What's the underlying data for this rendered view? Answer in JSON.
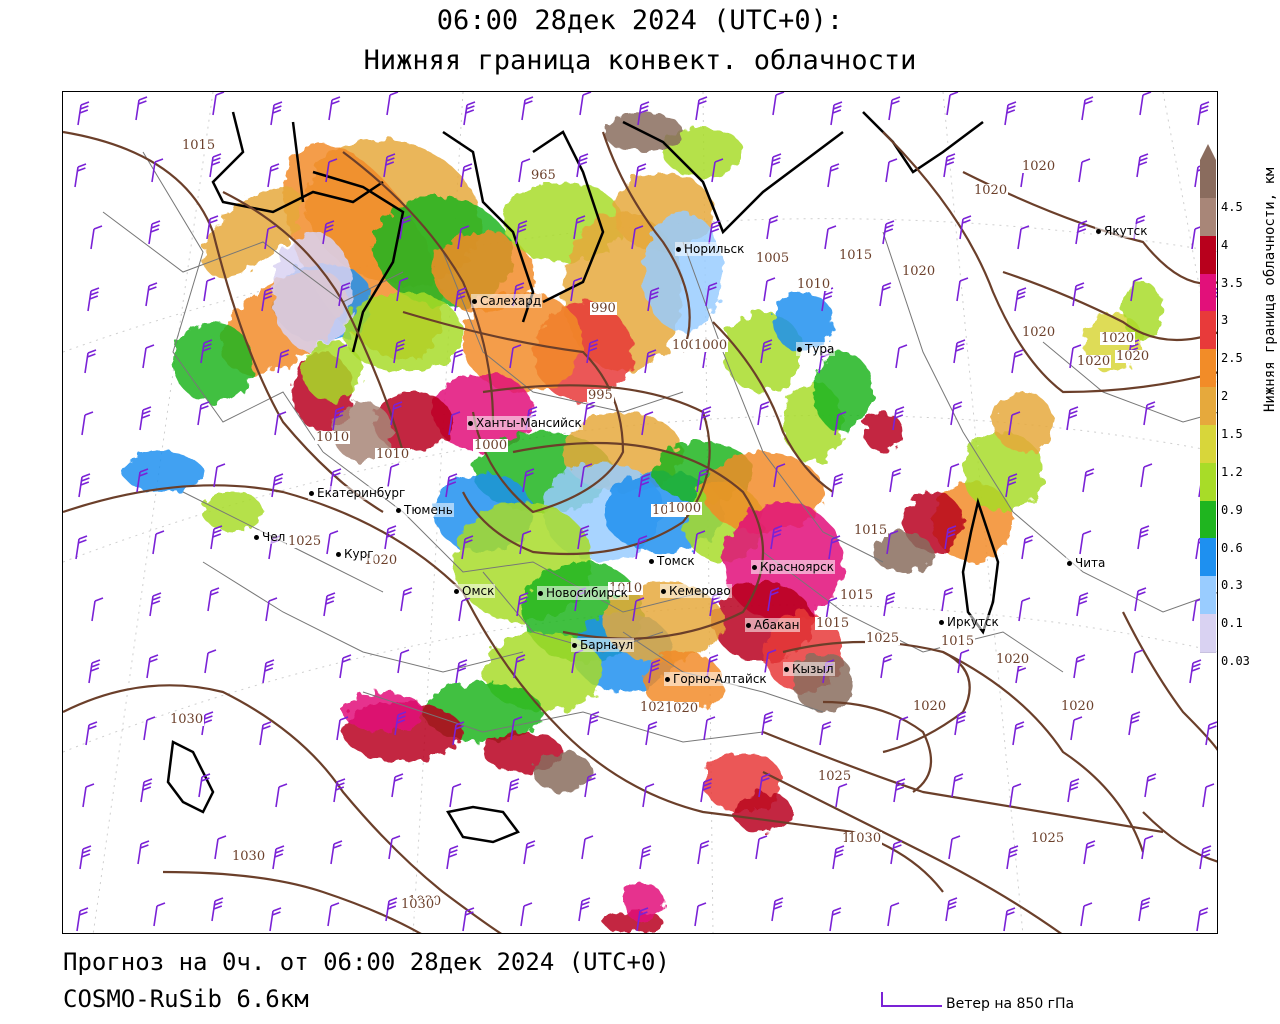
{
  "header": {
    "title": "06:00 28дек 2024 (UTC+0):",
    "subtitle": "Нижняя граница конвект. облачности"
  },
  "footer": {
    "forecast_line": "Прогноз на 0ч. от 06:00 28дек 2024 (UTC+0)",
    "model_line": "COSMO-RuSib 6.6км",
    "wind_legend_label": "Ветер на 850 гПа"
  },
  "legend": {
    "title": "Нижняя граница облачности, км",
    "ticks": [
      "4.5",
      "4",
      "3.5",
      "3",
      "2.5",
      "2",
      "1.5",
      "1.2",
      "0.9",
      "0.6",
      "0.3",
      "0.1",
      "0.03"
    ],
    "colors": [
      "#8a6c5e",
      "#a88678",
      "#b8001c",
      "#e2107a",
      "#e83a3a",
      "#f28c28",
      "#e6a93c",
      "#d8d63a",
      "#a8dc28",
      "#1fb51f",
      "#1e90f0",
      "#99ccff",
      "#d9d2f2"
    ]
  },
  "colors": {
    "isobar": "#6b3f2a",
    "coastline": "#000000",
    "border": "#777777",
    "wind_barb": "#7a22d6"
  },
  "cities": [
    {
      "name": "Якутск"
    },
    {
      "name": "Норильск"
    },
    {
      "name": "Салехард"
    },
    {
      "name": "Тура"
    },
    {
      "name": "Ханты-Мансийск"
    },
    {
      "name": "Екатеринбург"
    },
    {
      "name": "Тюмень"
    },
    {
      "name": "Чел"
    },
    {
      "name": "Кург"
    },
    {
      "name": "Омск"
    },
    {
      "name": "Новосибирск"
    },
    {
      "name": "Томск"
    },
    {
      "name": "Кемерово"
    },
    {
      "name": "Красноярск"
    },
    {
      "name": "Абакан"
    },
    {
      "name": "Барнаул"
    },
    {
      "name": "Горно-Алтайск"
    },
    {
      "name": "Кызыл"
    },
    {
      "name": "Иркутск"
    },
    {
      "name": "Чита"
    }
  ],
  "isobar_labels": [
    "1015",
    "1020",
    "1020",
    "1020",
    "1020",
    "1015",
    "1010",
    "1005",
    "1020",
    "1020",
    "1020",
    "990",
    "1000",
    "995",
    "1000",
    "1010",
    "1010",
    "1005",
    "1015",
    "1015",
    "1025",
    "1025",
    "1020",
    "1020",
    "1020",
    "1030",
    "1030",
    "1025",
    "1030",
    "1030",
    "1025",
    "1020",
    "1030",
    "1030",
    "1020",
    "1015",
    "1010",
    "1000",
    "1015",
    "965",
    "1020",
    "1000"
  ]
}
